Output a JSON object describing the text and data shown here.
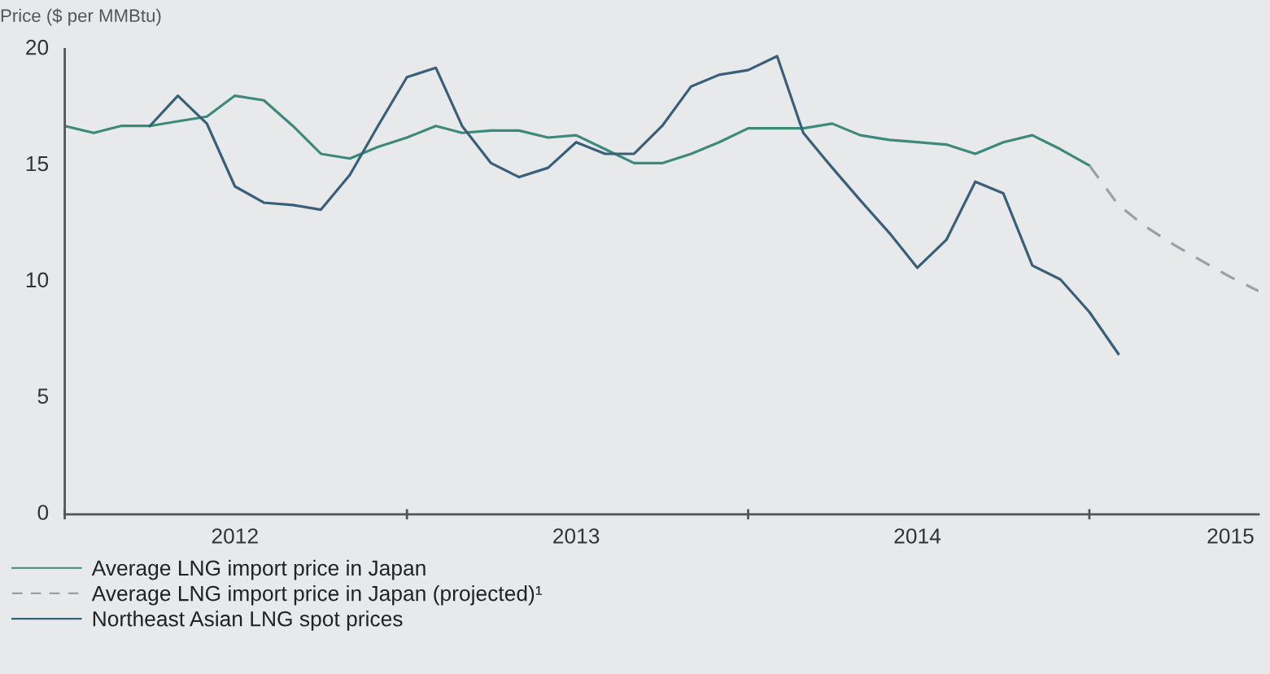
{
  "chart_data": {
    "type": "line",
    "ylabel": "Price ($ per MMBtu)",
    "xlim": [
      "2012-01",
      "2015-07"
    ],
    "ylim": [
      0,
      20
    ],
    "yticks": [
      0,
      5,
      10,
      15,
      20
    ],
    "xticks": [
      {
        "value": "2012-01",
        "label": null
      },
      {
        "value": "2012-07",
        "label": "2012"
      },
      {
        "value": "2013-01",
        "label": null
      },
      {
        "value": "2013-07",
        "label": "2013"
      },
      {
        "value": "2014-01",
        "label": null
      },
      {
        "value": "2014-07",
        "label": "2014"
      },
      {
        "value": "2015-01",
        "label": null
      },
      {
        "value": "2015-06",
        "label": "2015"
      }
    ],
    "grid": false,
    "legend": "bottom",
    "series": [
      {
        "name": "Average LNG import price in Japan",
        "color": "#3e8a7a",
        "line_style": "solid",
        "x": [
          "2012-01",
          "2012-02",
          "2012-03",
          "2012-04",
          "2012-05",
          "2012-06",
          "2012-07",
          "2012-08",
          "2012-09",
          "2012-10",
          "2012-11",
          "2012-12",
          "2013-01",
          "2013-02",
          "2013-03",
          "2013-04",
          "2013-05",
          "2013-06",
          "2013-07",
          "2013-08",
          "2013-09",
          "2013-10",
          "2013-11",
          "2013-12",
          "2014-01",
          "2014-02",
          "2014-03",
          "2014-04",
          "2014-05",
          "2014-06",
          "2014-07",
          "2014-08",
          "2014-09",
          "2014-10",
          "2014-11",
          "2014-12",
          "2015-01"
        ],
        "values": [
          16.7,
          16.4,
          16.7,
          16.7,
          16.9,
          17.1,
          18.0,
          17.8,
          16.7,
          15.5,
          15.3,
          15.8,
          16.2,
          16.7,
          16.4,
          16.5,
          16.5,
          16.2,
          16.3,
          15.7,
          15.1,
          15.1,
          15.5,
          16.0,
          16.6,
          16.6,
          16.6,
          16.8,
          16.3,
          16.1,
          16.0,
          15.9,
          15.5,
          16.0,
          16.3,
          15.7,
          15.0
        ]
      },
      {
        "name": "Average LNG import price in Japan (projected)¹",
        "color": "#9aa0a6",
        "line_style": "dashed",
        "x": [
          "2015-01",
          "2015-02",
          "2015-03",
          "2015-04",
          "2015-05",
          "2015-06",
          "2015-07"
        ],
        "values": [
          15.0,
          13.3,
          12.4,
          11.6,
          10.9,
          10.2,
          9.6
        ]
      },
      {
        "name": "Northeast Asian LNG spot prices",
        "color": "#3a5f78",
        "line_style": "solid",
        "x": [
          "2012-04",
          "2012-05",
          "2012-06",
          "2012-07",
          "2012-08",
          "2012-09",
          "2012-10",
          "2012-11",
          "2012-12",
          "2013-01",
          "2013-02",
          "2013-03",
          "2013-04",
          "2013-05",
          "2013-06",
          "2013-07",
          "2013-08",
          "2013-09",
          "2013-10",
          "2013-11",
          "2013-12",
          "2014-01",
          "2014-02",
          "2014-03",
          "2014-04",
          "2014-05",
          "2014-06",
          "2014-07",
          "2014-08",
          "2014-09",
          "2014-10",
          "2014-11",
          "2014-12",
          "2015-01",
          "2015-02"
        ],
        "values": [
          16.7,
          18.0,
          16.8,
          14.1,
          13.4,
          13.3,
          13.1,
          14.6,
          16.7,
          18.8,
          19.2,
          16.7,
          15.1,
          14.5,
          14.9,
          16.0,
          15.5,
          15.5,
          16.7,
          18.4,
          18.9,
          19.1,
          19.7,
          16.4,
          14.9,
          13.5,
          12.1,
          10.6,
          11.8,
          14.3,
          13.8,
          10.7,
          10.1,
          8.7,
          6.9
        ]
      }
    ]
  }
}
